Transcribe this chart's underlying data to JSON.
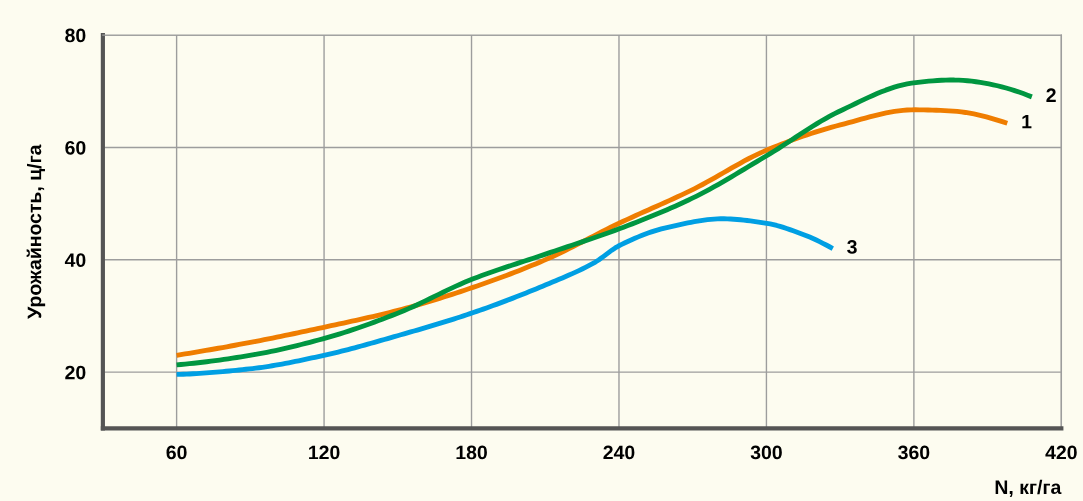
{
  "chart_data": {
    "type": "line",
    "xlabel": "N, кг/га",
    "ylabel": "Урожайность, ц/га",
    "xlim": [
      30,
      420
    ],
    "xticks": [
      60,
      120,
      180,
      240,
      300,
      360,
      420
    ],
    "ylim": [
      10,
      80
    ],
    "yticks": [
      20,
      40,
      60,
      80
    ],
    "grid": true,
    "legend": false,
    "marker": "none",
    "line_style": "solid",
    "series": [
      {
        "name": "1",
        "color": "#ef7d00",
        "x": [
          60,
          90,
          120,
          150,
          180,
          210,
          240,
          270,
          300,
          330,
          360,
          375,
          398
        ],
        "values": [
          23,
          25.3,
          28,
          31,
          35,
          40,
          46.5,
          52.5,
          59.5,
          64,
          66.7,
          66.5,
          64.3
        ]
      },
      {
        "name": "2",
        "color": "#009640",
        "x": [
          60,
          90,
          120,
          150,
          180,
          210,
          240,
          270,
          300,
          330,
          360,
          375,
          408
        ],
        "values": [
          21.3,
          23,
          26,
          30.5,
          36.5,
          41,
          45.5,
          51,
          58.5,
          66.5,
          71.5,
          72,
          69
        ]
      },
      {
        "name": "3",
        "color": "#009fe3",
        "x": [
          60,
          90,
          120,
          150,
          180,
          210,
          230,
          240,
          260,
          282,
          300,
          315,
          327
        ],
        "values": [
          19.6,
          20.6,
          23,
          26.5,
          30.5,
          35.5,
          39.5,
          42.5,
          45.8,
          47.3,
          46.5,
          44.5,
          42
        ]
      }
    ]
  }
}
